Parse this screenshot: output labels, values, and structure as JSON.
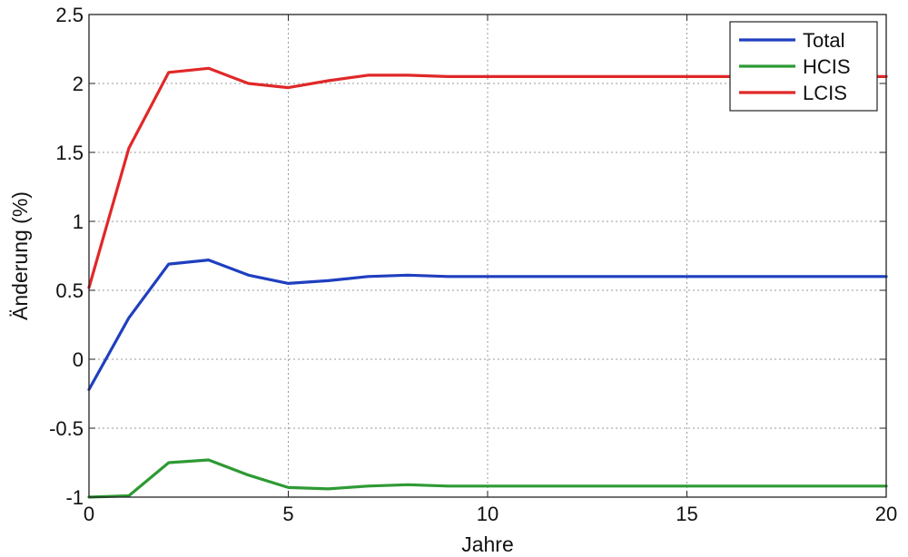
{
  "chart_data": {
    "type": "line",
    "title": "",
    "xlabel": "Jahre",
    "ylabel": "Änderung (%)",
    "xlim": [
      0,
      20
    ],
    "ylim": [
      -1,
      2.5
    ],
    "xticks": [
      0,
      5,
      10,
      15,
      20
    ],
    "xtick_labels": [
      "0",
      "5",
      "10",
      "15",
      "20"
    ],
    "yticks": [
      -1,
      -0.5,
      0,
      0.5,
      1,
      1.5,
      2,
      2.5
    ],
    "ytick_labels": [
      "-1",
      "-0.5",
      "0",
      "0.5",
      "1",
      "1.5",
      "2",
      "2.5"
    ],
    "grid": true,
    "legend_position": "top-right",
    "x": [
      0,
      1,
      2,
      3,
      4,
      5,
      6,
      7,
      8,
      9,
      10,
      11,
      12,
      13,
      14,
      15,
      16,
      17,
      18,
      19,
      20
    ],
    "series": [
      {
        "name": "Total",
        "color": "#1f3fbf",
        "values": [
          -0.22,
          0.3,
          0.69,
          0.72,
          0.61,
          0.55,
          0.57,
          0.6,
          0.61,
          0.6,
          0.6,
          0.6,
          0.6,
          0.6,
          0.6,
          0.6,
          0.6,
          0.6,
          0.6,
          0.6,
          0.6
        ]
      },
      {
        "name": "HCIS",
        "color": "#2e9a34",
        "values": [
          -1.0,
          -0.99,
          -0.75,
          -0.73,
          -0.84,
          -0.93,
          -0.94,
          -0.92,
          -0.91,
          -0.92,
          -0.92,
          -0.92,
          -0.92,
          -0.92,
          -0.92,
          -0.92,
          -0.92,
          -0.92,
          -0.92,
          -0.92,
          -0.92
        ]
      },
      {
        "name": "LCIS",
        "color": "#e02828",
        "values": [
          0.52,
          1.53,
          2.08,
          2.11,
          2.0,
          1.97,
          2.02,
          2.06,
          2.06,
          2.05,
          2.05,
          2.05,
          2.05,
          2.05,
          2.05,
          2.05,
          2.05,
          2.05,
          2.05,
          2.05,
          2.05
        ]
      }
    ]
  }
}
